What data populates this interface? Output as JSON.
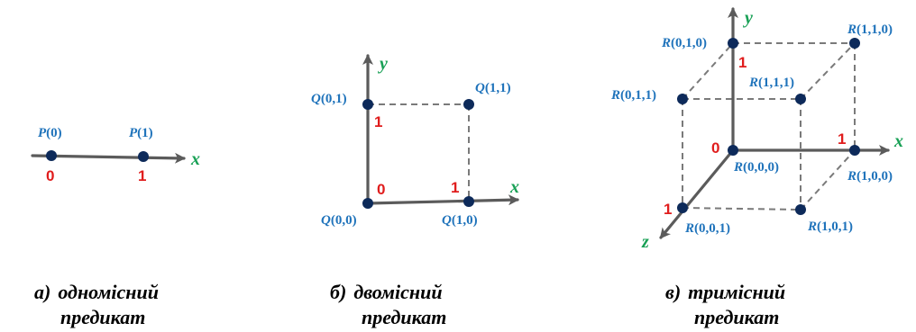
{
  "colors": {
    "axis": "#5b5b5b",
    "point": "#0d2a5a",
    "point_label": "#1f73bb",
    "tick_label": "#e01d1d",
    "axis_name": "#18a055",
    "caption": "#000000"
  },
  "panels": [
    {
      "id": "one-place",
      "axes": {
        "x": "x"
      },
      "ticks": [
        "0",
        "1"
      ],
      "points": [
        {
          "letter": "P",
          "args": "(0)"
        },
        {
          "letter": "P",
          "args": "(1)"
        }
      ],
      "caption": {
        "letter": "а)",
        "line1": "одномісний",
        "line2": "предикат"
      }
    },
    {
      "id": "two-place",
      "axes": {
        "x": "x",
        "y": "y"
      },
      "ticks": [
        "0",
        "1",
        "1"
      ],
      "points": [
        {
          "letter": "Q",
          "args": "(0,0)"
        },
        {
          "letter": "Q",
          "args": "(1,0)"
        },
        {
          "letter": "Q",
          "args": "(0,1)"
        },
        {
          "letter": "Q",
          "args": "(1,1)"
        }
      ],
      "caption": {
        "letter": "б)",
        "line1": "двомісний",
        "line2": "предикат"
      }
    },
    {
      "id": "three-place",
      "axes": {
        "x": "x",
        "y": "y",
        "z": "z"
      },
      "ticks": [
        "0",
        "1",
        "1",
        "1"
      ],
      "points": [
        {
          "letter": "R",
          "args": "(0,0,0)"
        },
        {
          "letter": "R",
          "args": "(1,0,0)"
        },
        {
          "letter": "R",
          "args": "(0,1,0)"
        },
        {
          "letter": "R",
          "args": "(1,1,0)"
        },
        {
          "letter": "R",
          "args": "(0,0,1)"
        },
        {
          "letter": "R",
          "args": "(1,0,1)"
        },
        {
          "letter": "R",
          "args": "(0,1,1)"
        },
        {
          "letter": "R",
          "args": "(1,1,1)"
        }
      ],
      "caption": {
        "letter": "в)",
        "line1": "тримісний",
        "line2": "предикат"
      }
    }
  ]
}
